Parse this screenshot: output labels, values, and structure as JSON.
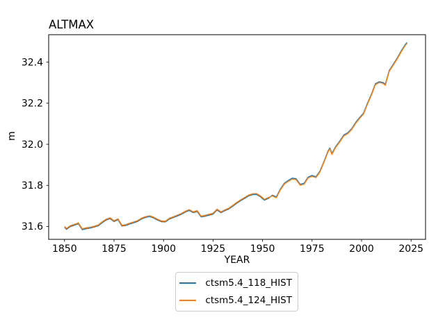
{
  "window": {
    "background": "#ffffff"
  },
  "chart_data": {
    "type": "line",
    "title": "ALTMAX",
    "xlabel": "YEAR",
    "ylabel": "m",
    "xlim": [
      1842,
      2032.3
    ],
    "ylim": [
      31.537,
      32.534
    ],
    "xticks": [
      1850,
      1875,
      1900,
      1925,
      1950,
      1975,
      2000,
      2025
    ],
    "yticks": [
      31.6,
      31.8,
      32.0,
      32.2,
      32.4
    ],
    "ytick_labels": [
      "31.6",
      "31.8",
      "32.0",
      "32.2",
      "32.4"
    ],
    "grid": false,
    "legend_position": "below-center",
    "legend_edge_color": "#cccccc",
    "axis_color": "#000000",
    "x": [
      1850,
      1851,
      1853,
      1855,
      1857,
      1859,
      1861,
      1863,
      1865,
      1867,
      1869,
      1871,
      1873,
      1875,
      1877,
      1879,
      1881,
      1883,
      1885,
      1887,
      1889,
      1891,
      1893,
      1895,
      1897,
      1899,
      1901,
      1903,
      1905,
      1907,
      1909,
      1911,
      1913,
      1915,
      1917,
      1919,
      1921,
      1923,
      1925,
      1927,
      1929,
      1931,
      1933,
      1935,
      1937,
      1939,
      1941,
      1943,
      1945,
      1947,
      1949,
      1951,
      1953,
      1955,
      1957,
      1959,
      1961,
      1963,
      1965,
      1967,
      1969,
      1971,
      1973,
      1975,
      1977,
      1979,
      1981,
      1983,
      1984,
      1985,
      1987,
      1989,
      1991,
      1993,
      1995,
      1997,
      1999,
      2001,
      2003,
      2005,
      2007,
      2009,
      2011,
      2012,
      2014,
      2016,
      2018,
      2020,
      2022,
      2023
    ],
    "series": [
      {
        "name": "ctsm5.4_118_HIST",
        "color": "#1f77b4",
        "values": [
          31.596,
          31.586,
          31.6,
          31.606,
          31.613,
          31.584,
          31.589,
          31.592,
          31.597,
          31.603,
          31.618,
          31.631,
          31.638,
          31.624,
          31.633,
          31.602,
          31.605,
          31.612,
          31.618,
          31.625,
          31.637,
          31.644,
          31.648,
          31.641,
          31.631,
          31.623,
          31.622,
          31.636,
          31.643,
          31.651,
          31.659,
          31.67,
          31.678,
          31.667,
          31.673,
          31.646,
          31.65,
          31.655,
          31.66,
          31.68,
          31.667,
          31.677,
          31.685,
          31.699,
          31.713,
          31.726,
          31.737,
          31.749,
          31.755,
          31.756,
          31.744,
          31.728,
          31.737,
          31.752,
          31.744,
          31.782,
          31.81,
          31.824,
          31.835,
          31.832,
          31.805,
          31.81,
          31.84,
          31.848,
          31.842,
          31.87,
          31.916,
          31.966,
          31.982,
          31.955,
          31.99,
          32.016,
          32.045,
          32.056,
          32.076,
          32.106,
          32.13,
          32.152,
          32.2,
          32.244,
          32.295,
          32.305,
          32.3,
          32.292,
          32.36,
          32.39,
          32.42,
          32.455,
          32.485,
          32.496
        ]
      },
      {
        "name": "ctsm5.4_124_HIST",
        "color": "#ff7f0e",
        "values": [
          31.6,
          31.59,
          31.604,
          31.61,
          31.617,
          31.588,
          31.593,
          31.596,
          31.601,
          31.607,
          31.622,
          31.635,
          31.642,
          31.628,
          31.637,
          31.606,
          31.609,
          31.616,
          31.622,
          31.629,
          31.641,
          31.648,
          31.652,
          31.645,
          31.635,
          31.627,
          31.626,
          31.64,
          31.647,
          31.655,
          31.663,
          31.674,
          31.682,
          31.671,
          31.677,
          31.65,
          31.654,
          31.659,
          31.664,
          31.684,
          31.671,
          31.681,
          31.689,
          31.703,
          31.717,
          31.73,
          31.741,
          31.753,
          31.759,
          31.76,
          31.748,
          31.732,
          31.741,
          31.748,
          31.74,
          31.778,
          31.806,
          31.82,
          31.831,
          31.828,
          31.801,
          31.806,
          31.836,
          31.844,
          31.838,
          31.866,
          31.912,
          31.962,
          31.978,
          31.951,
          31.986,
          32.012,
          32.041,
          32.052,
          32.072,
          32.102,
          32.126,
          32.148,
          32.196,
          32.24,
          32.291,
          32.301,
          32.296,
          32.288,
          32.356,
          32.386,
          32.416,
          32.451,
          32.481,
          32.492
        ]
      }
    ]
  }
}
